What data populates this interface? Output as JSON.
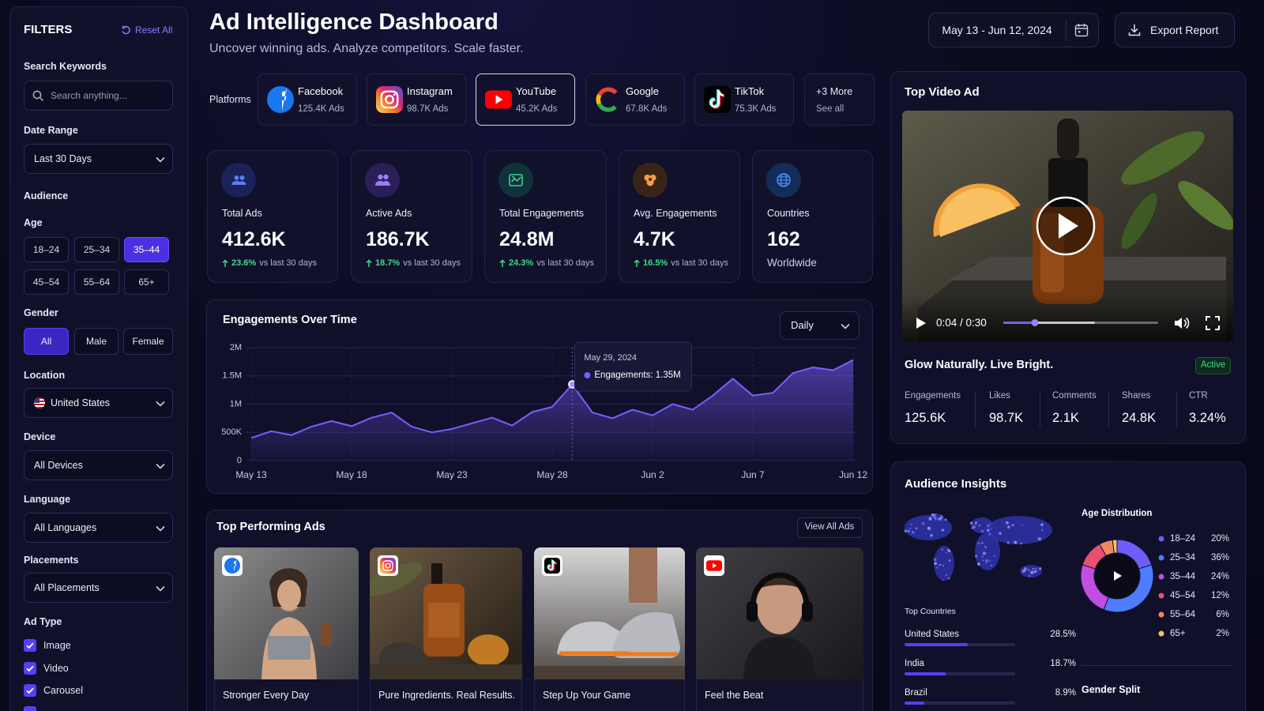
{
  "filters": {
    "title": "FILTERS",
    "reset": "Reset All",
    "search": {
      "label": "Search Keywords",
      "placeholder": "Search anything..."
    },
    "date_range": {
      "label": "Date Range",
      "value": "Last 30 Days"
    },
    "audience": "Audience",
    "age": {
      "label": "Age",
      "options": [
        {
          "label": "18–24",
          "selected": false
        },
        {
          "label": "25–34",
          "selected": false
        },
        {
          "label": "35–44",
          "selected": true
        },
        {
          "label": "45–54",
          "selected": false
        },
        {
          "label": "55–64",
          "selected": false
        },
        {
          "label": "65+",
          "selected": false
        }
      ]
    },
    "gender": {
      "label": "Gender",
      "options": [
        {
          "label": "All",
          "selected": true
        },
        {
          "label": "Male",
          "selected": false
        },
        {
          "label": "Female",
          "selected": false
        }
      ]
    },
    "location": {
      "label": "Location",
      "value": "United States"
    },
    "device": {
      "label": "Device",
      "value": "All Devices"
    },
    "language": {
      "label": "Language",
      "value": "All Languages"
    },
    "placements": {
      "label": "Placements",
      "value": "All Placements"
    },
    "ad_type": {
      "label": "Ad Type",
      "options": [
        {
          "label": "Image",
          "checked": true
        },
        {
          "label": "Video",
          "checked": true
        },
        {
          "label": "Carousel",
          "checked": true
        }
      ]
    }
  },
  "header": {
    "title": "Ad Intelligence Dashboard",
    "subtitle": "Uncover winning ads. Analyze competitors. Scale faster.",
    "date_range": "May 13 - Jun 12, 2024",
    "export": "Export Report"
  },
  "platforms": {
    "label": "Platforms",
    "items": [
      {
        "name": "Facebook",
        "ads": "125.4K Ads",
        "selected": false
      },
      {
        "name": "Instagram",
        "ads": "98.7K Ads",
        "selected": false
      },
      {
        "name": "YouTube",
        "ads": "45.2K Ads",
        "selected": true
      },
      {
        "name": "Google",
        "ads": "67.8K Ads",
        "selected": false
      },
      {
        "name": "TikTok",
        "ads": "75.3K Ads",
        "selected": false
      }
    ],
    "more": {
      "label": "+3 More",
      "link": "See all"
    }
  },
  "kpis": [
    {
      "label": "Total Ads",
      "value": "412.6K",
      "change": "23.6%",
      "period": "vs last 30 days",
      "color": "#5b7cfa"
    },
    {
      "label": "Active Ads",
      "value": "186.7K",
      "change": "18.7%",
      "period": "vs last 30 days",
      "color": "#9b7cf7"
    },
    {
      "label": "Total Engagements",
      "value": "24.8M",
      "change": "24.3%",
      "period": "vs last 30 days",
      "color": "#3ecf9a"
    },
    {
      "label": "Avg. Engagements",
      "value": "4.7K",
      "change": "16.5%",
      "period": "vs last 30 days",
      "color": "#f59e42"
    },
    {
      "label": "Countries",
      "value": "162",
      "period": "Worldwide",
      "color": "#4a8cff"
    }
  ],
  "chart_data": [
    {
      "type": "area",
      "title": "Engagements Over Time",
      "granularity": "Daily",
      "categories": [
        "May 13",
        null,
        null,
        null,
        null,
        "May 18",
        null,
        null,
        null,
        null,
        "May 23",
        null,
        null,
        null,
        null,
        "May 28",
        null,
        null,
        null,
        null,
        "Jun 2",
        null,
        null,
        null,
        null,
        "Jun 7",
        null,
        null,
        null,
        null,
        "Jun 12"
      ],
      "series": [
        {
          "color": "#7c5cff",
          "values": [
            400000,
            520000,
            450000,
            600000,
            700000,
            610000,
            760000,
            850000,
            600000,
            500000,
            560000,
            660000,
            760000,
            620000,
            860000,
            950000,
            1350000,
            850000,
            750000,
            900000,
            800000,
            1000000,
            900000,
            1150000,
            1450000,
            1150000,
            1200000,
            1550000,
            1650000,
            1600000,
            1780000
          ]
        }
      ],
      "ylim": [
        0,
        2000000
      ],
      "yticks": [
        0,
        {
          "value": 500000,
          "label": "500K"
        },
        {
          "value": 1000000,
          "label": "1M"
        },
        {
          "value": 1500000,
          "label": "1.5M"
        },
        {
          "value": 2000000,
          "label": "2M"
        }
      ],
      "grid": true,
      "tooltip": {
        "title": "May 29, 2024",
        "text": "Engagements: 1.35M"
      }
    },
    {
      "type": "bar",
      "orientation": "horizontal",
      "title": "Top Countries",
      "categories": [
        "United States",
        "India",
        "Brazil"
      ],
      "values": [
        28.5,
        18.7,
        8.9
      ],
      "value_labels": [
        "28.5%",
        "18.7%",
        "8.9%"
      ],
      "xlim": [
        0,
        50
      ],
      "color": "#5b3df5"
    },
    {
      "type": "pie",
      "donut": true,
      "title": "Age Distribution",
      "categories": [
        "18–24",
        "25–34",
        "35–44",
        "45–54",
        "55–64",
        "65+"
      ],
      "values": [
        20,
        36,
        24,
        12,
        6,
        2
      ],
      "value_labels": [
        "20%",
        "36%",
        "24%",
        "12%",
        "6%",
        "2%"
      ],
      "colors": [
        "#6d5efc",
        "#4f7bff",
        "#c04ee0",
        "#e8506e",
        "#f08a5d",
        "#f5c16c"
      ]
    }
  ],
  "top_video_ad": {
    "title": "Top Video Ad",
    "time": "0:04 / 0:30",
    "ad_title": "Glow Naturally. Live Bright.",
    "status": "Active",
    "stats": [
      {
        "label": "Engagements",
        "value": "125.6K"
      },
      {
        "label": "Likes",
        "value": "98.7K"
      },
      {
        "label": "Comments",
        "value": "2.1K"
      },
      {
        "label": "Shares",
        "value": "24.8K"
      },
      {
        "label": "CTR",
        "value": "3.24%"
      }
    ]
  },
  "top_ads": {
    "title": "Top Performing Ads",
    "view_all": "View All Ads",
    "items": [
      {
        "title": "Stronger Every Day",
        "platform": "Facebook"
      },
      {
        "title": "Pure Ingredients. Real Results.",
        "platform": "Instagram"
      },
      {
        "title": "Step Up Your Game",
        "platform": "TikTok"
      },
      {
        "title": "Feel the Beat",
        "platform": "YouTube"
      }
    ]
  },
  "audience": {
    "title": "Audience Insights",
    "gender_split": "Gender Split"
  }
}
